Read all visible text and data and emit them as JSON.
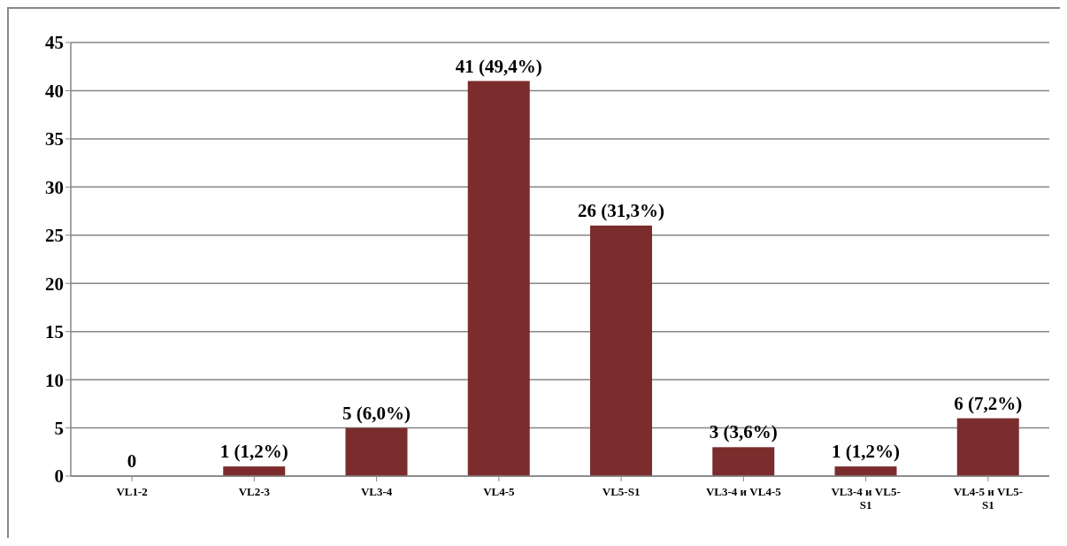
{
  "chart_data": {
    "type": "bar",
    "categories": [
      "VL1-2",
      "VL2-3",
      "VL3-4",
      "VL4-5",
      "VL5-S1",
      "VL3-4 и VL4-5",
      "VL3-4 и VL5-S1",
      "VL4-5 и VL5-S1"
    ],
    "values": [
      0,
      1,
      5,
      41,
      26,
      3,
      1,
      6
    ],
    "value_labels": [
      "0",
      "1 (1,2%)",
      "5 (6,0%)",
      "41 (49,4%)",
      "26 (31,3%)",
      "3 (3,6%)",
      "1 (1,2%)",
      "6 (7,2%)"
    ],
    "color": "#7b2c2c",
    "ylim": [
      0,
      45
    ],
    "yticks": [
      0,
      5,
      10,
      15,
      20,
      25,
      30,
      35,
      40,
      45
    ],
    "grid": "y"
  }
}
